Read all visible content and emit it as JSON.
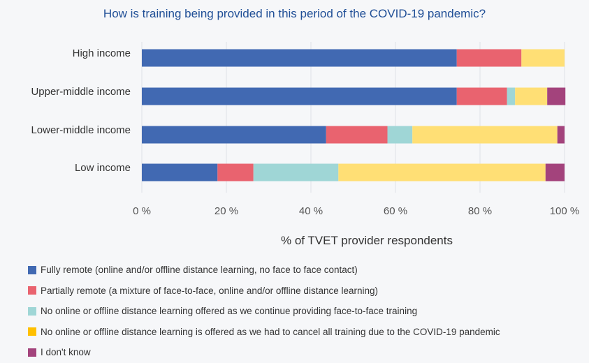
{
  "chart_data": {
    "type": "bar",
    "orientation": "horizontal",
    "stacked": true,
    "title": "How is training being provided in this period of the COVID-19 pandemic?",
    "xlabel": "% of TVET provider respondents",
    "ylabel": "",
    "xlim": [
      0,
      100
    ],
    "x_ticks": [
      "0 %",
      "20 %",
      "40 %",
      "60 %",
      "80 %",
      "100 %"
    ],
    "x_tick_values": [
      0,
      20,
      40,
      60,
      80,
      100
    ],
    "grid": "vertical",
    "legend_position": "bottom",
    "categories": [
      "High income",
      "Upper-middle income",
      "Lower-middle income",
      "Low income"
    ],
    "series": [
      {
        "name": "Fully remote (online and/or offline distance learning, no face to face contact)",
        "color": "#4169b2",
        "values": [
          74.5,
          74.5,
          43.6,
          17.9
        ]
      },
      {
        "name": "Partially remote (a mixture of face-to-face, online and/or offline distance learning)",
        "color": "#e9636f",
        "values": [
          15.3,
          11.9,
          14.5,
          8.5
        ]
      },
      {
        "name": "No online or offline distance learning offered as we continue providing face-to-face training",
        "color": "#9fd6d6",
        "values": [
          0,
          1.9,
          5.9,
          20.1
        ]
      },
      {
        "name": "No online or offline distance learning is offered as we had to cancel all training due to the COVID-19 pandemic",
        "color": "#ffdf75",
        "legend_color": "#ffc000",
        "values": [
          10.2,
          7.6,
          34.3,
          49.0
        ]
      },
      {
        "name": "I don't know",
        "color": "#a3437c",
        "values": [
          0,
          4.3,
          1.7,
          4.5
        ]
      }
    ]
  }
}
